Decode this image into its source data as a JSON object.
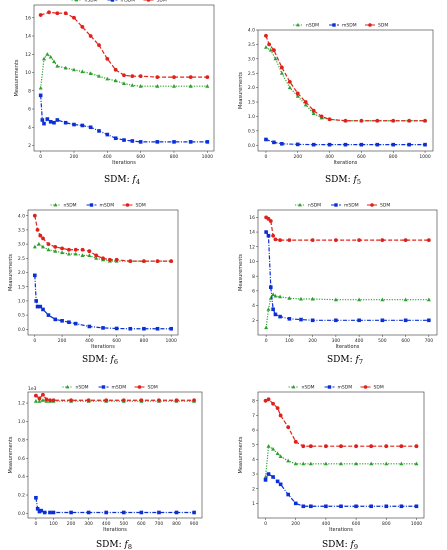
{
  "legend_labels": [
    "nSDM",
    "mSDM",
    "SDM"
  ],
  "colors": {
    "nSDM": "#2ca02c",
    "mSDM": "#0b2fd6",
    "SDM": "#e0201b"
  },
  "chart_data": [
    {
      "type": "line",
      "caption": "SDM: ",
      "caption_fn": "f",
      "caption_sub": "4",
      "xlabel": "Iterations",
      "ylabel": "Measurements",
      "offset": "",
      "xlim": [
        -40,
        1040
      ],
      "ylim": [
        1.4,
        17.4
      ],
      "xticks": [
        0,
        200,
        400,
        600,
        800,
        1000
      ],
      "xtick_labels": [
        "0",
        "200",
        "400",
        "600",
        "800",
        "1000"
      ],
      "yticks": [
        2,
        4,
        6,
        8,
        10,
        12,
        14,
        16
      ],
      "ytick_labels": [
        "2",
        "4",
        "6",
        "8",
        "10",
        "12",
        "14",
        "16"
      ],
      "series": [
        {
          "name": "nSDM",
          "x": [
            0,
            20,
            40,
            60,
            80,
            100,
            150,
            200,
            250,
            300,
            350,
            400,
            450,
            500,
            550,
            600,
            700,
            800,
            900,
            1000
          ],
          "y": [
            8.3,
            11.5,
            12.0,
            11.7,
            11.2,
            10.7,
            10.5,
            10.3,
            10.1,
            9.9,
            9.6,
            9.3,
            9.1,
            8.8,
            8.6,
            8.5,
            8.5,
            8.5,
            8.5,
            8.5
          ]
        },
        {
          "name": "mSDM",
          "x": [
            0,
            10,
            20,
            40,
            60,
            80,
            100,
            150,
            200,
            250,
            300,
            350,
            400,
            450,
            500,
            550,
            600,
            700,
            800,
            900,
            1000
          ],
          "y": [
            7.5,
            4.8,
            4.4,
            4.9,
            4.6,
            4.5,
            4.8,
            4.5,
            4.3,
            4.2,
            4.0,
            3.6,
            3.2,
            2.8,
            2.6,
            2.5,
            2.4,
            2.4,
            2.4,
            2.4,
            2.4
          ]
        },
        {
          "name": "SDM",
          "x": [
            0,
            50,
            100,
            150,
            200,
            250,
            300,
            350,
            400,
            450,
            500,
            550,
            600,
            700,
            800,
            900,
            1000
          ],
          "y": [
            16.3,
            16.6,
            16.5,
            16.5,
            16.0,
            15.0,
            14.0,
            13.0,
            11.5,
            10.3,
            9.7,
            9.6,
            9.6,
            9.5,
            9.5,
            9.5,
            9.5
          ]
        }
      ]
    },
    {
      "type": "line",
      "caption": "SDM: ",
      "caption_fn": "f",
      "caption_sub": "5",
      "xlabel": "Iterations",
      "ylabel": "Measurements",
      "offset": "",
      "xlim": [
        -50,
        1050
      ],
      "ylim": [
        -0.2,
        4.0
      ],
      "xticks": [
        0,
        200,
        400,
        600,
        800,
        1000
      ],
      "xtick_labels": [
        "0",
        "200",
        "400",
        "600",
        "800",
        "1000"
      ],
      "yticks": [
        0.0,
        0.5,
        1.0,
        1.5,
        2.0,
        2.5,
        3.0,
        3.5,
        4.0
      ],
      "ytick_labels": [
        "0.0",
        "0.5",
        "1.0",
        "1.5",
        "2.0",
        "2.5",
        "3.0",
        "3.5",
        "4.0"
      ],
      "series": [
        {
          "name": "nSDM",
          "x": [
            0,
            30,
            60,
            100,
            150,
            200,
            250,
            300,
            350,
            400,
            500,
            600,
            700,
            800,
            900,
            1000
          ],
          "y": [
            3.4,
            3.3,
            3.0,
            2.5,
            2.0,
            1.7,
            1.4,
            1.1,
            0.95,
            0.9,
            0.85,
            0.85,
            0.85,
            0.85,
            0.85,
            0.85
          ]
        },
        {
          "name": "mSDM",
          "x": [
            0,
            50,
            100,
            200,
            300,
            400,
            500,
            600,
            700,
            800,
            900,
            1000
          ],
          "y": [
            0.2,
            0.1,
            0.05,
            0.03,
            0.02,
            0.02,
            0.02,
            0.02,
            0.02,
            0.02,
            0.02,
            0.02
          ]
        },
        {
          "name": "SDM",
          "x": [
            0,
            20,
            50,
            100,
            150,
            200,
            250,
            300,
            350,
            400,
            500,
            600,
            700,
            800,
            900,
            1000
          ],
          "y": [
            3.8,
            3.5,
            3.3,
            2.7,
            2.2,
            1.8,
            1.5,
            1.2,
            1.0,
            0.9,
            0.85,
            0.85,
            0.85,
            0.85,
            0.85,
            0.85
          ]
        }
      ]
    },
    {
      "type": "line",
      "caption": "SDM: ",
      "caption_fn": "f",
      "caption_sub": "6",
      "xlabel": "Iterations",
      "ylabel": "Measurements",
      "offset": "",
      "xlim": [
        -50,
        1050
      ],
      "ylim": [
        -0.2,
        4.2
      ],
      "xticks": [
        0,
        200,
        400,
        600,
        800,
        1000
      ],
      "xtick_labels": [
        "0",
        "200",
        "400",
        "600",
        "800",
        "1000"
      ],
      "yticks": [
        0.0,
        0.5,
        1.0,
        1.5,
        2.0,
        2.5,
        3.0,
        3.5,
        4.0
      ],
      "ytick_labels": [
        "0.0",
        "0.5",
        "1.0",
        "1.5",
        "2.0",
        "2.5",
        "3.0",
        "3.5",
        "4.0"
      ],
      "series": [
        {
          "name": "nSDM",
          "x": [
            0,
            30,
            60,
            100,
            150,
            200,
            250,
            300,
            350,
            400,
            450,
            500,
            550,
            600,
            700,
            800,
            900,
            1000
          ],
          "y": [
            2.9,
            3.0,
            2.9,
            2.8,
            2.75,
            2.7,
            2.65,
            2.65,
            2.6,
            2.6,
            2.5,
            2.45,
            2.4,
            2.4,
            2.4,
            2.4,
            2.4,
            2.4
          ]
        },
        {
          "name": "mSDM",
          "x": [
            0,
            10,
            20,
            40,
            60,
            100,
            150,
            200,
            250,
            300,
            400,
            500,
            600,
            700,
            800,
            900,
            1000
          ],
          "y": [
            1.9,
            1.0,
            0.8,
            0.8,
            0.7,
            0.5,
            0.35,
            0.3,
            0.25,
            0.2,
            0.1,
            0.05,
            0.03,
            0.02,
            0.02,
            0.02,
            0.02
          ]
        },
        {
          "name": "SDM",
          "x": [
            0,
            20,
            40,
            60,
            100,
            150,
            200,
            250,
            300,
            350,
            400,
            450,
            500,
            550,
            600,
            700,
            800,
            900,
            1000
          ],
          "y": [
            4.0,
            3.5,
            3.3,
            3.2,
            3.0,
            2.9,
            2.85,
            2.8,
            2.8,
            2.8,
            2.75,
            2.6,
            2.5,
            2.45,
            2.45,
            2.4,
            2.4,
            2.4,
            2.4
          ]
        }
      ]
    },
    {
      "type": "line",
      "caption": "SDM: ",
      "caption_fn": "f",
      "caption_sub": "7",
      "xlabel": "Iterations",
      "ylabel": "Measurements",
      "offset": "",
      "xlim": [
        -35,
        735
      ],
      "ylim": [
        0,
        17
      ],
      "xticks": [
        0,
        100,
        200,
        300,
        400,
        500,
        600,
        700
      ],
      "xtick_labels": [
        "0",
        "100",
        "200",
        "300",
        "400",
        "500",
        "600",
        "700"
      ],
      "yticks": [
        2,
        4,
        6,
        8,
        10,
        12,
        14,
        16
      ],
      "ytick_labels": [
        "2",
        "4",
        "6",
        "8",
        "10",
        "12",
        "14",
        "16"
      ],
      "series": [
        {
          "name": "nSDM",
          "x": [
            0,
            10,
            20,
            30,
            40,
            60,
            100,
            150,
            200,
            300,
            400,
            500,
            600,
            700
          ],
          "y": [
            1.0,
            3.5,
            5.0,
            5.5,
            5.3,
            5.2,
            5.0,
            4.9,
            4.9,
            4.8,
            4.8,
            4.8,
            4.8,
            4.8
          ]
        },
        {
          "name": "mSDM",
          "x": [
            0,
            10,
            20,
            30,
            40,
            60,
            100,
            150,
            200,
            300,
            400,
            500,
            600,
            700
          ],
          "y": [
            14.0,
            13.5,
            6.5,
            3.5,
            2.8,
            2.5,
            2.2,
            2.1,
            2.0,
            2.0,
            2.0,
            2.0,
            2.0,
            2.0
          ]
        },
        {
          "name": "SDM",
          "x": [
            0,
            10,
            20,
            30,
            40,
            60,
            100,
            200,
            300,
            400,
            500,
            600,
            700
          ],
          "y": [
            16.0,
            15.8,
            15.5,
            13.5,
            13.0,
            12.9,
            12.9,
            12.9,
            12.9,
            12.9,
            12.9,
            12.9,
            12.9
          ]
        }
      ]
    },
    {
      "type": "line",
      "caption": "SDM: ",
      "caption_fn": "f",
      "caption_sub": "8",
      "xlabel": "Iterations",
      "ylabel": "Measurements",
      "offset": "1e3",
      "xlim": [
        -45,
        945
      ],
      "ylim": [
        -0.05,
        1.32
      ],
      "xticks": [
        0,
        100,
        200,
        300,
        400,
        500,
        600,
        700,
        800,
        900
      ],
      "xtick_labels": [
        "0",
        "100",
        "200",
        "300",
        "400",
        "500",
        "600",
        "700",
        "800",
        "900"
      ],
      "yticks": [
        0.0,
        0.2,
        0.4,
        0.6,
        0.8,
        1.0,
        1.2
      ],
      "ytick_labels": [
        "0.0",
        "0.2",
        "0.4",
        "0.6",
        "0.8",
        "1.0",
        "1.2"
      ],
      "series": [
        {
          "name": "nSDM",
          "x": [
            0,
            20,
            40,
            60,
            80,
            100,
            200,
            300,
            400,
            500,
            600,
            700,
            800,
            900
          ],
          "y": [
            1.22,
            1.22,
            1.23,
            1.22,
            1.22,
            1.22,
            1.22,
            1.22,
            1.22,
            1.22,
            1.22,
            1.22,
            1.22,
            1.22
          ]
        },
        {
          "name": "mSDM",
          "x": [
            0,
            10,
            20,
            30,
            50,
            80,
            100,
            200,
            300,
            400,
            500,
            600,
            700,
            800,
            900
          ],
          "y": [
            0.17,
            0.05,
            0.02,
            0.03,
            0.01,
            0.01,
            0.01,
            0.01,
            0.01,
            0.01,
            0.01,
            0.01,
            0.01,
            0.01,
            0.01
          ]
        },
        {
          "name": "SDM",
          "x": [
            0,
            20,
            40,
            60,
            80,
            100,
            200,
            300,
            400,
            500,
            600,
            700,
            800,
            900
          ],
          "y": [
            1.28,
            1.25,
            1.29,
            1.24,
            1.23,
            1.23,
            1.23,
            1.23,
            1.23,
            1.23,
            1.23,
            1.23,
            1.23,
            1.23
          ]
        }
      ]
    },
    {
      "type": "line",
      "caption": "SDM: ",
      "caption_fn": "f",
      "caption_sub": "9",
      "xlabel": "Iterations",
      "ylabel": "Measurements",
      "offset": "",
      "xlim": [
        -50,
        1050
      ],
      "ylim": [
        0,
        8.6
      ],
      "xticks": [
        0,
        200,
        400,
        600,
        800,
        1000
      ],
      "xtick_labels": [
        "0",
        "200",
        "400",
        "600",
        "800",
        "1000"
      ],
      "yticks": [
        1,
        2,
        3,
        4,
        5,
        6,
        7,
        8
      ],
      "ytick_labels": [
        "1",
        "2",
        "3",
        "4",
        "5",
        "6",
        "7",
        "8"
      ],
      "series": [
        {
          "name": "nSDM",
          "x": [
            0,
            20,
            50,
            80,
            100,
            150,
            200,
            250,
            300,
            400,
            500,
            600,
            700,
            800,
            900,
            1000
          ],
          "y": [
            2.8,
            4.9,
            4.7,
            4.4,
            4.2,
            3.9,
            3.7,
            3.7,
            3.7,
            3.7,
            3.7,
            3.7,
            3.7,
            3.7,
            3.7,
            3.7
          ]
        },
        {
          "name": "mSDM",
          "x": [
            0,
            20,
            50,
            80,
            100,
            150,
            200,
            250,
            300,
            400,
            500,
            600,
            700,
            800,
            900,
            1000
          ],
          "y": [
            2.6,
            3.0,
            2.8,
            2.5,
            2.3,
            1.6,
            1.0,
            0.8,
            0.8,
            0.8,
            0.8,
            0.8,
            0.8,
            0.8,
            0.8,
            0.8
          ]
        },
        {
          "name": "SDM",
          "x": [
            0,
            20,
            50,
            80,
            100,
            150,
            200,
            250,
            300,
            400,
            500,
            600,
            700,
            800,
            900,
            1000
          ],
          "y": [
            8.0,
            8.1,
            7.8,
            7.5,
            7.0,
            6.2,
            5.2,
            4.9,
            4.9,
            4.9,
            4.9,
            4.9,
            4.9,
            4.9,
            4.9,
            4.9
          ]
        }
      ]
    }
  ]
}
